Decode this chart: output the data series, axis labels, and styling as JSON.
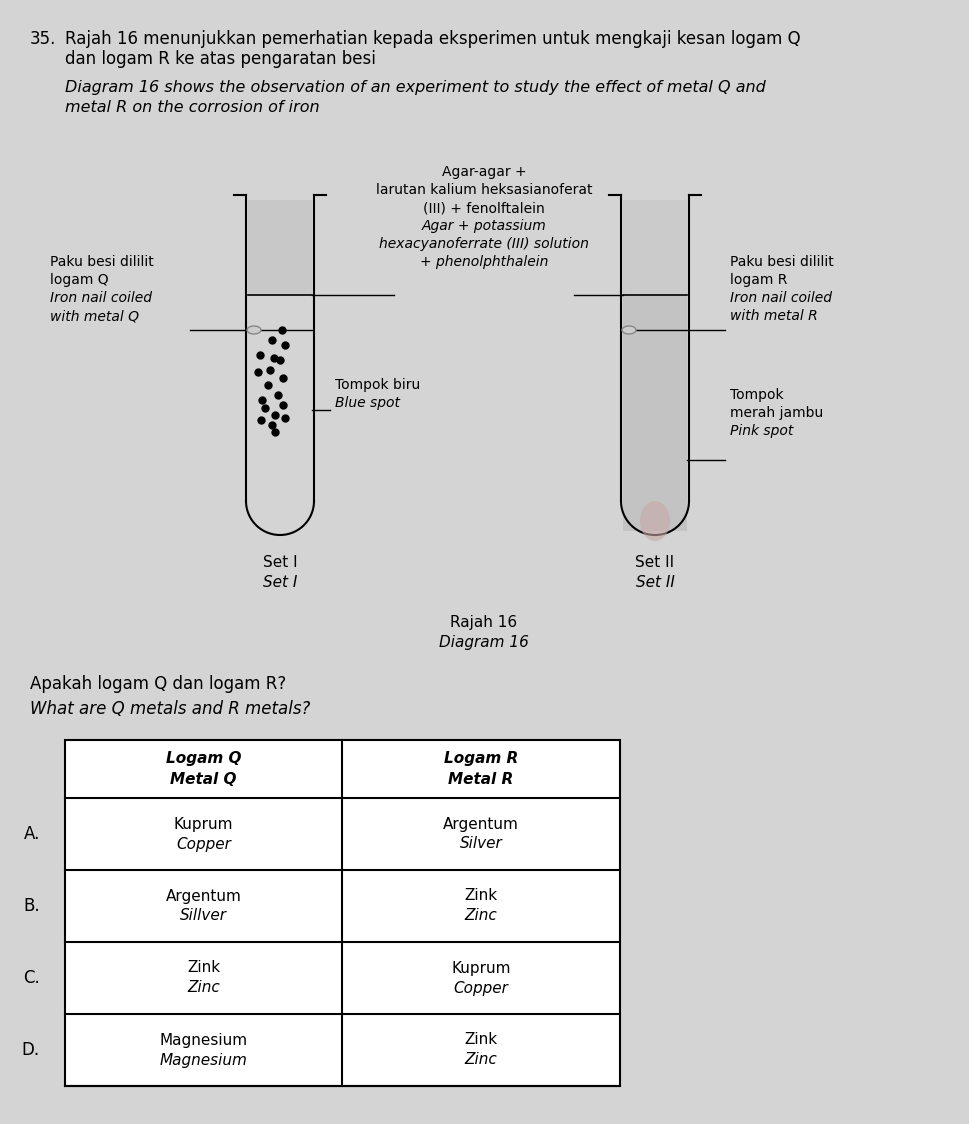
{
  "bg_color": "#d4d4d4",
  "question_number": "35.",
  "title_malay_line1": "Rajah 16 menunjukkan pemerhatian kepada eksperimen untuk mengkaji kesan logam Q",
  "title_malay_line2": "dan logam R ke atas pengaratan besi",
  "title_english_line1": "Diagram 16 shows the observation of an experiment to study the effect of metal Q and",
  "title_english_line2": "metal R on the corrosion of iron",
  "center_label_line1": "Agar-agar +",
  "center_label_line2": "larutan kalium heksasianoferat",
  "center_label_line3": "(III) + fenolftalein",
  "center_label_line4": "Agar + potassium",
  "center_label_line5": "hexacyanoferrate (III) solution",
  "center_label_line6": "+ phenolphthalein",
  "left_label_line1": "Paku besi dililit",
  "left_label_line2": "logam Q",
  "left_label_line3": "Iron nail coiled",
  "left_label_line4": "with metal Q",
  "right_label_line1": "Paku besi dililit",
  "right_label_line2": "logam R",
  "right_label_line3": "Iron nail coiled",
  "right_label_line4": "with metal R",
  "blue_spot_label1": "Tompok biru",
  "blue_spot_label2": "Blue spot",
  "pink_spot_label1": "Tompok",
  "pink_spot_label2": "merah jambu",
  "pink_spot_label3": "Pink spot",
  "set1_label1": "Set I",
  "set1_label2": "Set I",
  "set2_label1": "Set II",
  "set2_label2": "Set II",
  "diagram_label1": "Rajah 16",
  "diagram_label2": "Diagram 16",
  "question_malay": "Apakah logam Q dan logam R?",
  "question_english": "What are Q metals and R metals?",
  "row_labels": [
    "A.",
    "B.",
    "C.",
    "D."
  ],
  "col1_data": [
    "Kuprum\nCopper",
    "Argentum\nSillver",
    "Zink\nZinc",
    "Magnesium\nMagnesium"
  ],
  "col2_data": [
    "Argentum\nSilver",
    "Zink\nZinc",
    "Kuprum\nCopper",
    "Zink\nZinc"
  ]
}
